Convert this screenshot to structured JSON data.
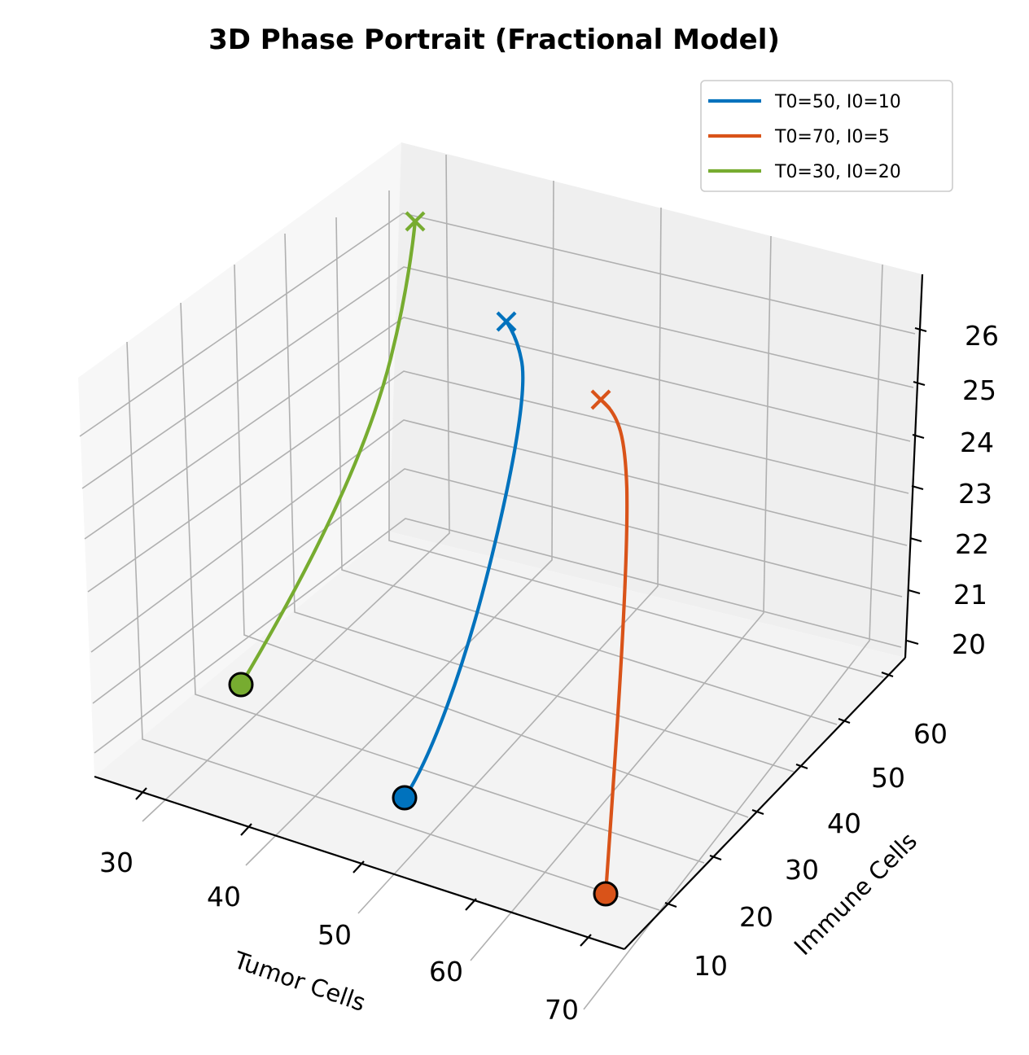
{
  "chart_data": {
    "type": "line3d",
    "title": "3D Phase Portrait (Fractional Model)",
    "xlabel": "Tumor Cells",
    "ylabel": "Immune Cells",
    "zlabel": "",
    "x_ticks": [
      "30",
      "40",
      "50",
      "60",
      "70"
    ],
    "y_ticks": [
      "10",
      "20",
      "30",
      "40",
      "50",
      "60"
    ],
    "z_ticks": [
      "20",
      "21",
      "22",
      "23",
      "24",
      "25",
      "26"
    ],
    "legend_position": "top-right",
    "grid": true,
    "series": [
      {
        "name": "T0=50, I0=10",
        "color": "#0072BD",
        "start": {
          "x": 50,
          "y": 10,
          "z": 20
        },
        "end": {
          "x": 50.4,
          "y": 52,
          "z": 26.2
        },
        "start_marker": "circle",
        "end_marker": "x"
      },
      {
        "name": "T0=70, I0=5",
        "color": "#D95319",
        "start": {
          "x": 70,
          "y": 5,
          "z": 20
        },
        "end": {
          "x": 70.2,
          "y": 50,
          "z": 25.0
        },
        "start_marker": "circle",
        "end_marker": "x"
      },
      {
        "name": "T0=30, I0=20",
        "color": "#77AC30",
        "start": {
          "x": 30,
          "y": 20,
          "z": 20
        },
        "end": {
          "x": 30.1,
          "y": 63,
          "z": 27.2
        },
        "start_marker": "circle",
        "end_marker": "x"
      }
    ]
  }
}
